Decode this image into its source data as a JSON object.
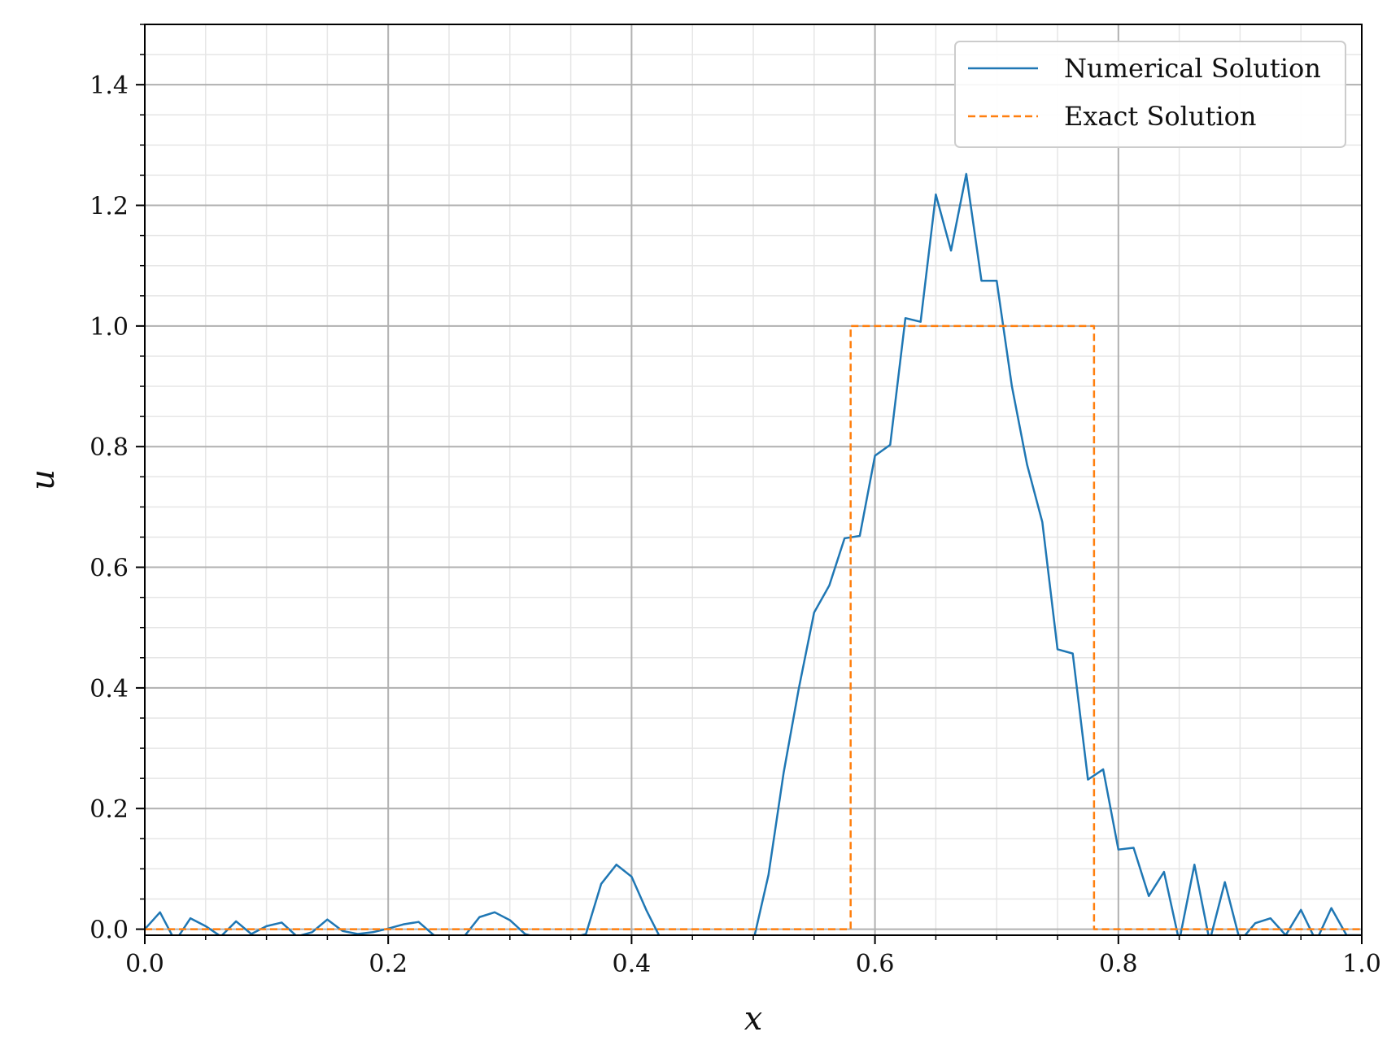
{
  "chart_data": {
    "type": "line",
    "title": "",
    "xlabel": "x",
    "ylabel": "u",
    "xlim": [
      0.0,
      1.0
    ],
    "ylim": [
      -0.01,
      1.5
    ],
    "x_ticks": [
      "0.0",
      "0.2",
      "0.4",
      "0.6",
      "0.8",
      "1.0"
    ],
    "y_ticks": [
      "0.0",
      "0.2",
      "0.4",
      "0.6",
      "0.8",
      "1.0",
      "1.2",
      "1.4"
    ],
    "grid": "major and minor",
    "legend_position": "top-right",
    "colors": {
      "numerical": "#1f77b4",
      "exact": "#ff7f0e"
    },
    "series": [
      {
        "name": "Numerical Solution",
        "style": "solid",
        "color": "#1f77b4",
        "x": [
          0.0,
          0.0125,
          0.025,
          0.0375,
          0.05,
          0.0625,
          0.075,
          0.0875,
          0.1,
          0.1125,
          0.125,
          0.1375,
          0.15,
          0.1625,
          0.175,
          0.1875,
          0.2,
          0.2125,
          0.225,
          0.2375,
          0.25,
          0.2625,
          0.275,
          0.2875,
          0.3,
          0.3125,
          0.325,
          0.3375,
          0.35,
          0.3625,
          0.375,
          0.3875,
          0.4,
          0.4125,
          0.425,
          0.4375,
          0.45,
          0.4625,
          0.475,
          0.4875,
          0.5,
          0.5125,
          0.525,
          0.5375,
          0.55,
          0.5625,
          0.575,
          0.5875,
          0.6,
          0.6125,
          0.625,
          0.6375,
          0.65,
          0.6625,
          0.675,
          0.6875,
          0.7,
          0.7125,
          0.725,
          0.7375,
          0.75,
          0.7625,
          0.775,
          0.7875,
          0.8,
          0.8125,
          0.825,
          0.8375,
          0.85,
          0.8625,
          0.875,
          0.8875,
          0.9,
          0.9125,
          0.925,
          0.9375,
          0.95,
          0.9625,
          0.975,
          0.9875,
          1.0
        ],
        "y": [
          0.0,
          0.028,
          -0.02,
          0.018,
          0.005,
          -0.012,
          0.013,
          -0.008,
          0.005,
          0.011,
          -0.012,
          -0.005,
          0.016,
          -0.003,
          -0.008,
          -0.005,
          0.001,
          0.008,
          0.012,
          -0.01,
          -0.015,
          -0.012,
          0.02,
          0.028,
          0.015,
          -0.008,
          -0.015,
          -0.015,
          -0.015,
          -0.008,
          0.075,
          0.107,
          0.087,
          0.03,
          -0.02,
          -0.02,
          -0.02,
          -0.02,
          -0.02,
          -0.02,
          -0.02,
          0.09,
          0.26,
          0.4,
          0.525,
          0.57,
          0.648,
          0.652,
          0.785,
          0.803,
          1.013,
          1.007,
          1.218,
          1.125,
          1.252,
          1.075,
          1.075,
          0.9,
          0.77,
          0.675,
          0.464,
          0.457,
          0.248,
          0.265,
          0.132,
          0.135,
          0.055,
          0.095,
          -0.02,
          0.107,
          -0.02,
          0.078,
          -0.02,
          0.01,
          0.018,
          -0.01,
          0.032,
          -0.02,
          0.035,
          -0.01,
          -0.01
        ]
      },
      {
        "name": "Exact Solution",
        "style": "dashed",
        "color": "#ff7f0e",
        "x": [
          0.0,
          0.58,
          0.58,
          0.78,
          0.78,
          1.0
        ],
        "y": [
          0.0,
          0.0,
          1.0,
          1.0,
          0.0,
          0.0
        ]
      }
    ]
  }
}
